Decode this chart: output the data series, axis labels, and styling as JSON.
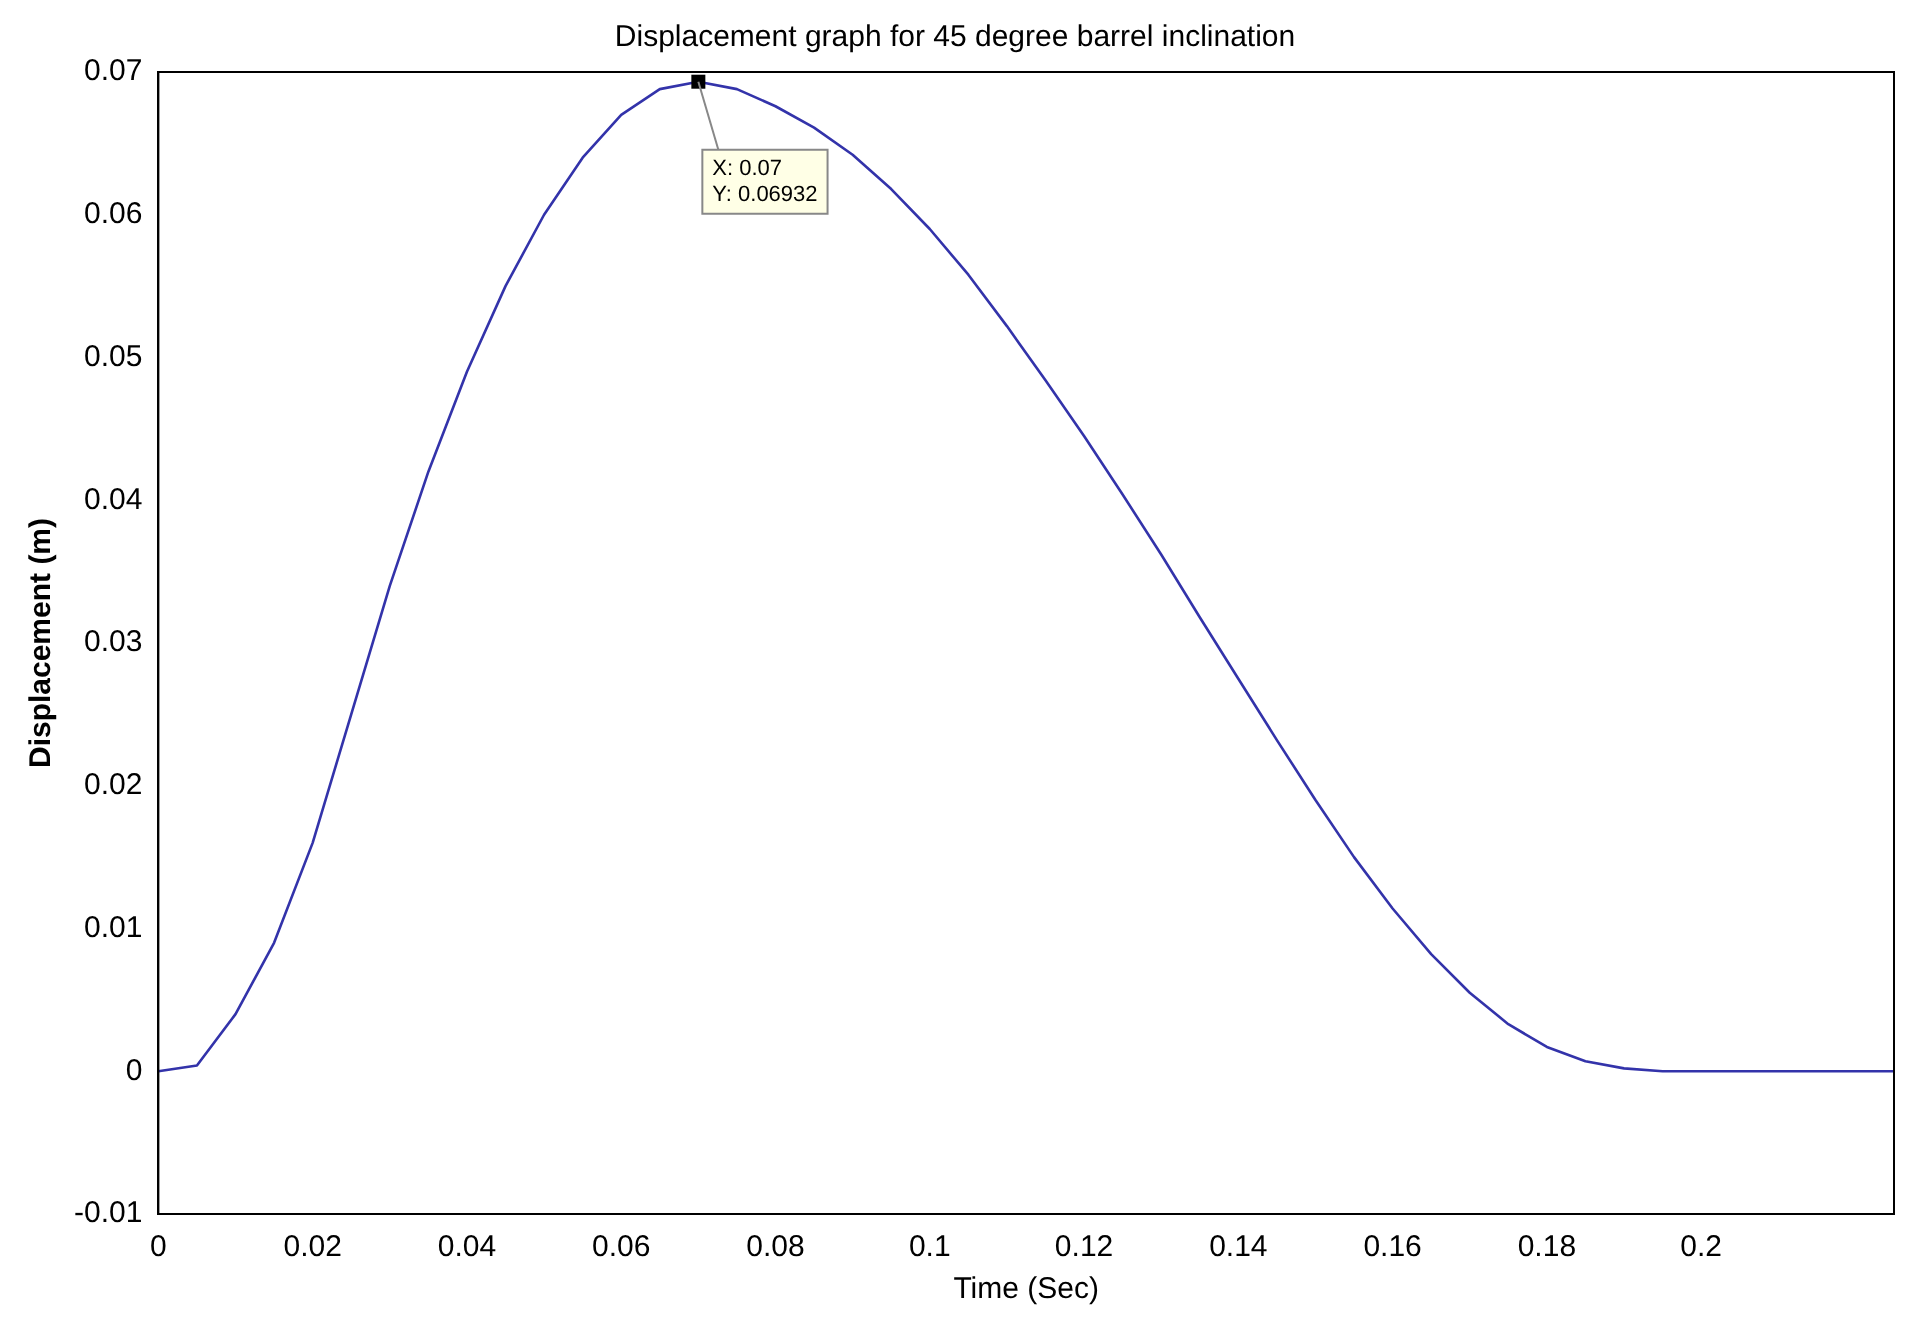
{
  "chart_data": {
    "type": "line",
    "title": "Displacement graph for 45 degree barrel inclination",
    "xlabel": "Time (Sec)",
    "ylabel": "Displacement (m)",
    "x": [
      0,
      0.005,
      0.01,
      0.015,
      0.02,
      0.025,
      0.03,
      0.035,
      0.04,
      0.045,
      0.05,
      0.055,
      0.06,
      0.065,
      0.07,
      0.075,
      0.08,
      0.085,
      0.09,
      0.095,
      0.1,
      0.105,
      0.11,
      0.115,
      0.12,
      0.125,
      0.13,
      0.135,
      0.14,
      0.145,
      0.15,
      0.155,
      0.16,
      0.165,
      0.17,
      0.175,
      0.18,
      0.185,
      0.19,
      0.195,
      0.2,
      0.21,
      0.225
    ],
    "series": [
      {
        "color": "#3333aa",
        "values": [
          0,
          0.0004,
          0.004,
          0.009,
          0.016,
          0.025,
          0.034,
          0.042,
          0.049,
          0.055,
          0.06,
          0.064,
          0.067,
          0.0688,
          0.06932,
          0.0688,
          0.0676,
          0.0661,
          0.0642,
          0.0618,
          0.059,
          0.0558,
          0.0522,
          0.0484,
          0.0445,
          0.0404,
          0.0362,
          0.0318,
          0.0275,
          0.0232,
          0.019,
          0.015,
          0.0114,
          0.0082,
          0.0055,
          0.0033,
          0.0017,
          0.0007,
          0.0002,
          0,
          0,
          0,
          0
        ]
      }
    ],
    "xlim": [
      0,
      0.225
    ],
    "xticks": [
      0,
      0.02,
      0.04,
      0.06,
      0.08,
      0.1,
      0.12,
      0.14,
      0.16,
      0.18,
      0.2
    ],
    "ylim": [
      -0.01,
      0.07
    ],
    "yticks": [
      -0.01,
      0,
      0.01,
      0.02,
      0.03,
      0.04,
      0.05,
      0.06,
      0.07
    ],
    "grid": false,
    "legend": false,
    "marker": "none",
    "line_style": "solid",
    "annotations": [
      {
        "text": "X: 0.07\nY: 0.06932",
        "x": 0.07,
        "y": 0.06932
      }
    ]
  }
}
